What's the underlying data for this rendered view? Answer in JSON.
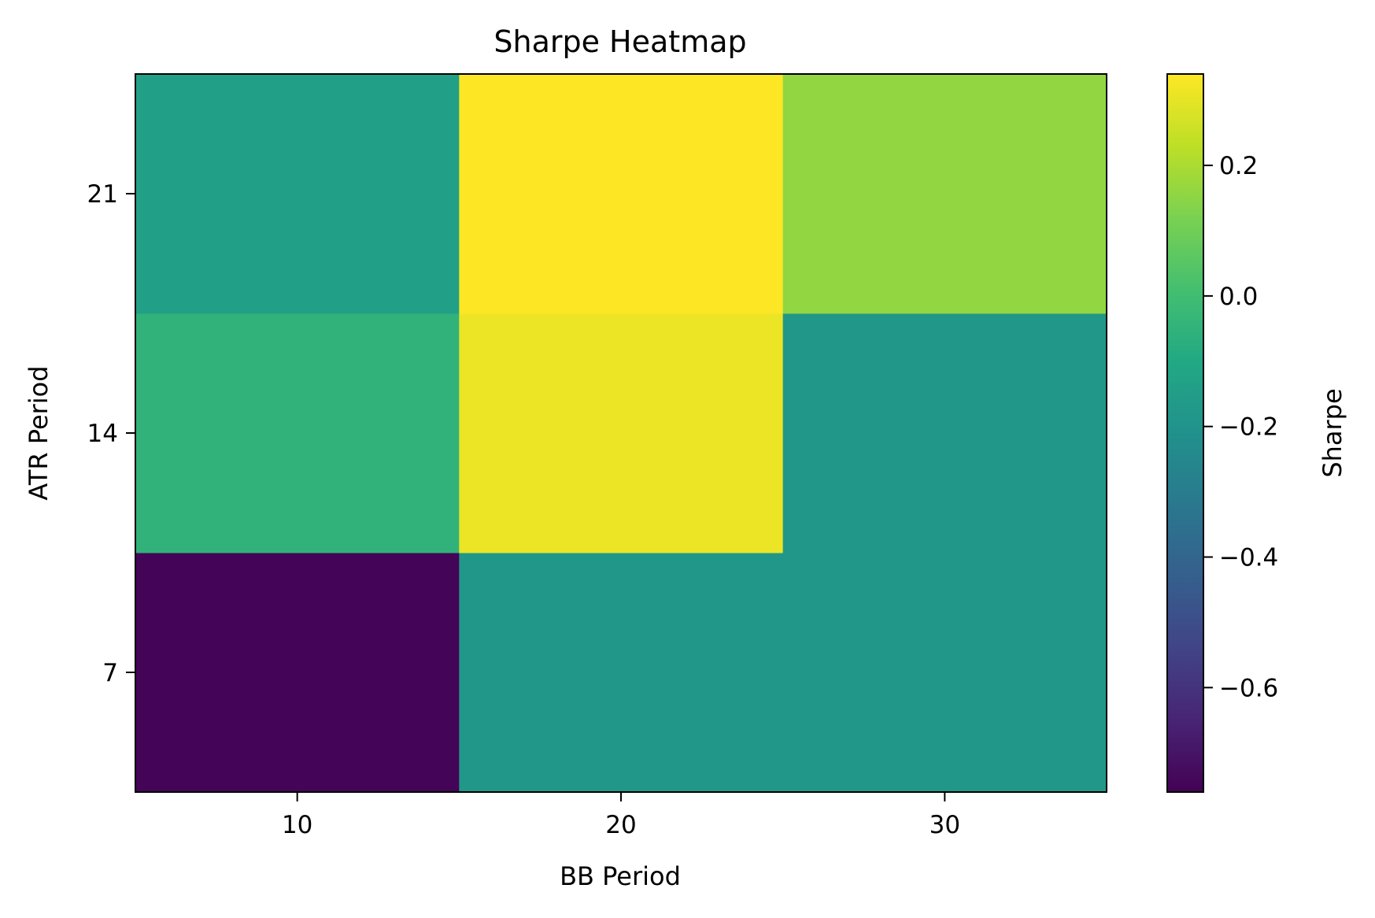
{
  "chart_data": {
    "type": "heatmap",
    "title": "Sharpe Heatmap",
    "xlabel": "BB Period",
    "ylabel": "ATR Period",
    "x_categories": [
      "10",
      "20",
      "30"
    ],
    "y_categories": [
      "7",
      "14",
      "21"
    ],
    "values": [
      [
        -0.75,
        -0.18,
        -0.18
      ],
      [
        -0.05,
        0.31,
        -0.18
      ],
      [
        -0.14,
        0.34,
        0.16
      ]
    ],
    "colorbar": {
      "label": "Sharpe",
      "range": [
        -0.76,
        0.34
      ],
      "ticks": [
        0.2,
        0.0,
        -0.2,
        -0.4,
        -0.6
      ],
      "tick_labels": [
        "0.2",
        "0.0",
        "−0.2",
        "−0.4",
        "−0.6"
      ],
      "colormap": "viridis"
    },
    "grid": false
  }
}
